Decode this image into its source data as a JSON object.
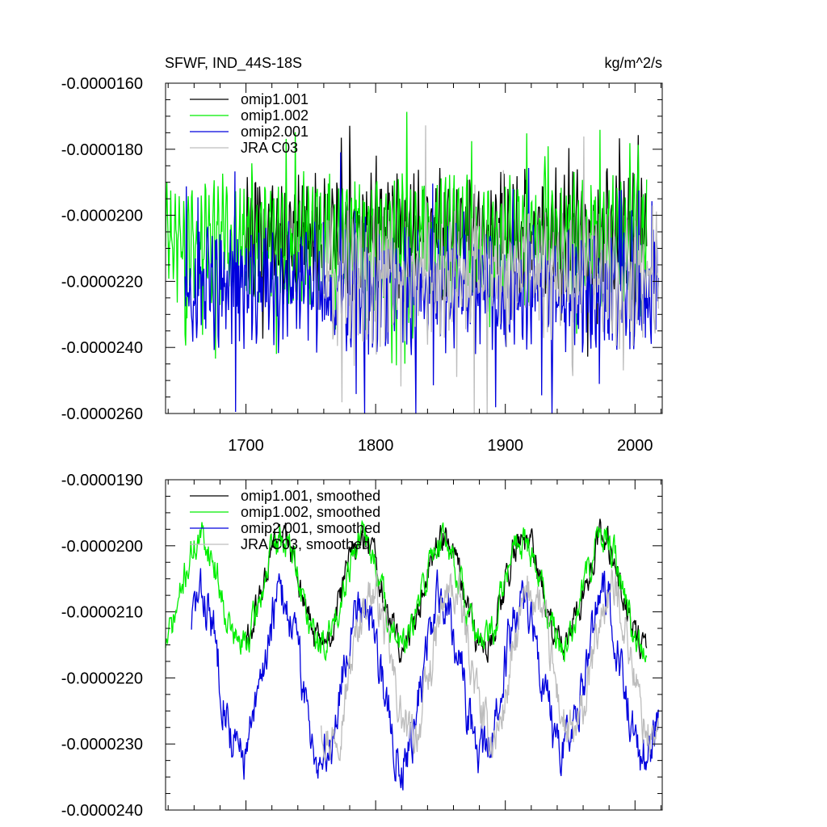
{
  "figure": {
    "title_left": "SFWF, IND_44S-18S",
    "title_right": "kg/m^2/s"
  },
  "colors": {
    "omip1_001": "#000000",
    "omip1_002": "#00ee00",
    "omip2_001": "#0000dd",
    "jra_c03": "#bdbdbd"
  },
  "chart_data": [
    {
      "type": "line",
      "name": "annual",
      "xlim": [
        1638,
        2021
      ],
      "ylim": [
        -2.6e-05,
        -1.6e-05
      ],
      "x_ticks": [
        1700,
        1800,
        1900,
        2000
      ],
      "x_tick_labels": [
        "1700",
        "1800",
        "1900",
        "2000"
      ],
      "y_ticks": [
        -1.6e-05,
        -1.8e-05,
        -2e-05,
        -2.2e-05,
        -2.4e-05,
        -2.6e-05
      ],
      "y_tick_labels": [
        "-0.0000160",
        "-0.0000180",
        "-0.0000200",
        "-0.0000220",
        "-0.0000240",
        "-0.0000260"
      ],
      "legend_position": "top-left",
      "series": [
        {
          "name": "omip1.001",
          "color_key": "omip1_001",
          "x_start": 1700,
          "x_end": 2009,
          "base": -2.06e-05,
          "amp": 1.2e-06,
          "noise": 9e-07,
          "seed": 11
        },
        {
          "name": "omip1.002",
          "color_key": "omip1_002",
          "x_start": 1638,
          "x_end": 2009,
          "base": -2.07e-05,
          "amp": 1.2e-06,
          "noise": 9e-07,
          "seed": 23
        },
        {
          "name": "omip2.001",
          "color_key": "omip2_001",
          "x_start": 1653,
          "x_end": 2018,
          "base": -2.22e-05,
          "amp": 8e-07,
          "noise": 1.3e-06,
          "seed": 37
        },
        {
          "name": "JRA C03",
          "color_key": "jra_c03",
          "x_start": 1758,
          "x_end": 2018,
          "base": -2.18e-05,
          "amp": 1e-06,
          "noise": 1.2e-06,
          "seed": 51
        }
      ]
    },
    {
      "type": "line",
      "name": "smoothed",
      "xlim": [
        1638,
        2021
      ],
      "ylim": [
        -2.4e-05,
        -1.9e-05
      ],
      "x_ticks": [
        1700,
        1800,
        1900,
        2000
      ],
      "x_tick_labels": [],
      "y_ticks": [
        -1.9e-05,
        -2e-05,
        -2.1e-05,
        -2.2e-05,
        -2.3e-05,
        -2.4e-05
      ],
      "y_tick_labels": [
        "-0.0000190",
        "-0.0000200",
        "-0.0000210",
        "-0.0000220",
        "-0.0000230",
        "-0.0000240"
      ],
      "legend_position": "top-left",
      "series": [
        {
          "name": "omip1.001, smoothed",
          "color_key": "omip1_001",
          "x_start": 1700,
          "x_end": 2009,
          "phase": 0,
          "base": -2.07e-05,
          "amp": 8e-07,
          "seed": 61
        },
        {
          "name": "omip1.002, smoothed",
          "color_key": "omip1_002",
          "x_start": 1638,
          "x_end": 2009,
          "phase": 0,
          "base": -2.07e-05,
          "amp": 8e-07,
          "seed": 71
        },
        {
          "name": "omip2.001, smoothed",
          "color_key": "omip2_001",
          "x_start": 1658,
          "x_end": 2018,
          "phase": 0,
          "base": -2.2e-05,
          "amp": 1.2e-06,
          "seed": 83
        },
        {
          "name": "JRA C03, smoothed",
          "color_key": "jra_c03",
          "x_start": 1758,
          "x_end": 2018,
          "phase": 7,
          "base": -2.18e-05,
          "amp": 1.1e-06,
          "seed": 97
        }
      ]
    }
  ]
}
